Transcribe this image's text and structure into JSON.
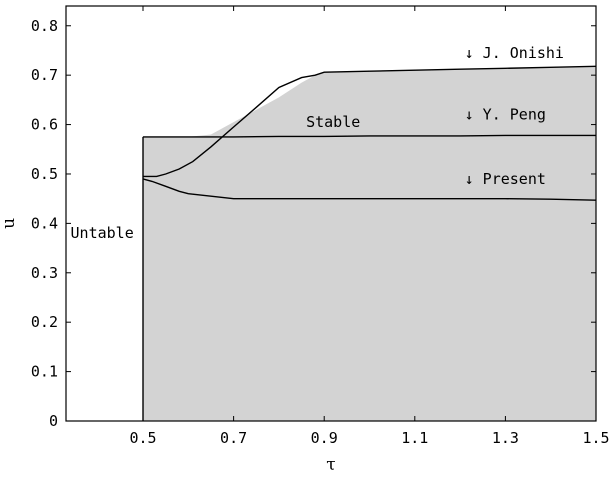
{
  "chart_data": {
    "type": "line",
    "xlabel": "τ",
    "ylabel": "u",
    "xlim": [
      0.33,
      1.5
    ],
    "ylim": [
      0,
      0.84
    ],
    "x_ticks": [
      0.5,
      0.7,
      0.9,
      1.1,
      1.3,
      1.5
    ],
    "x_tick_labels": [
      "0.5",
      "0.7",
      "0.9",
      "1.1",
      "1.3",
      "1.5"
    ],
    "y_ticks": [
      0,
      0.1,
      0.2,
      0.3,
      0.4,
      0.5,
      0.6,
      0.7,
      0.8
    ],
    "y_tick_labels": [
      "0",
      "0.1",
      "0.2",
      "0.3",
      "0.4",
      "0.5",
      "0.6",
      "0.7",
      "0.8"
    ],
    "grid": false,
    "stable_region_fill": "#d3d3d3",
    "stable_region": {
      "x": [
        0.5,
        0.55,
        0.6,
        0.65,
        0.7,
        0.75,
        0.8,
        0.85,
        0.88,
        0.9,
        1.0,
        1.1,
        1.2,
        1.3,
        1.4,
        1.5
      ],
      "upper": [
        0.575,
        0.575,
        0.575,
        0.58,
        0.605,
        0.63,
        0.655,
        0.685,
        0.7,
        0.706,
        0.708,
        0.71,
        0.712,
        0.714,
        0.716,
        0.718
      ],
      "lower": [
        0,
        0,
        0,
        0,
        0,
        0,
        0,
        0,
        0,
        0,
        0,
        0,
        0,
        0,
        0,
        0
      ]
    },
    "series": [
      {
        "name": "J. Onishi",
        "x": [
          0.5,
          0.53,
          0.55,
          0.58,
          0.61,
          0.65,
          0.7,
          0.75,
          0.8,
          0.85,
          0.88,
          0.9,
          1.0,
          1.1,
          1.2,
          1.3,
          1.4,
          1.5
        ],
        "y": [
          0.495,
          0.495,
          0.5,
          0.51,
          0.525,
          0.555,
          0.595,
          0.635,
          0.675,
          0.695,
          0.7,
          0.706,
          0.708,
          0.71,
          0.712,
          0.714,
          0.716,
          0.718
        ],
        "color": "#000000"
      },
      {
        "name": "Y. Peng",
        "x": [
          0.5,
          0.6,
          0.7,
          0.8,
          0.9,
          1.0,
          1.1,
          1.2,
          1.3,
          1.4,
          1.5
        ],
        "y": [
          0.575,
          0.575,
          0.575,
          0.576,
          0.576,
          0.577,
          0.577,
          0.577,
          0.578,
          0.578,
          0.578
        ],
        "color": "#000000"
      },
      {
        "name": "Present",
        "x": [
          0.5,
          0.52,
          0.55,
          0.58,
          0.6,
          0.65,
          0.7,
          0.75,
          0.8,
          0.9,
          1.0,
          1.1,
          1.2,
          1.3,
          1.4,
          1.5
        ],
        "y": [
          0.49,
          0.485,
          0.475,
          0.465,
          0.46,
          0.455,
          0.45,
          0.45,
          0.45,
          0.45,
          0.45,
          0.45,
          0.45,
          0.45,
          0.449,
          0.447
        ],
        "color": "#000000"
      }
    ],
    "stability_boundary_x": 0.5,
    "annotations": [
      {
        "key": "onishi",
        "text": "↓ J. Onishi",
        "x": 1.21,
        "y": 0.735
      },
      {
        "key": "peng",
        "text": "↓ Y. Peng",
        "x": 1.21,
        "y": 0.61
      },
      {
        "key": "present",
        "text": "↓ Present",
        "x": 1.21,
        "y": 0.48
      },
      {
        "key": "stable",
        "text": "Stable",
        "x": 0.86,
        "y": 0.595
      },
      {
        "key": "untable",
        "text": "Untable",
        "x": 0.34,
        "y": 0.37
      }
    ]
  }
}
